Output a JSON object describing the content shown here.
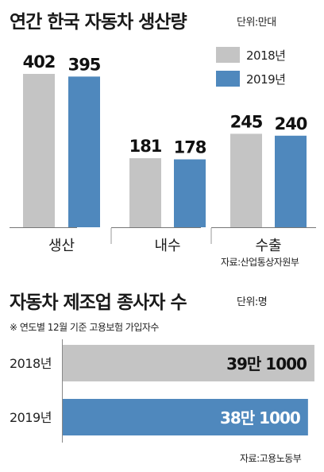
{
  "chart1": {
    "title": "연간 한국 자동차 생산량",
    "unit": "단위:만대",
    "source": "자료:산업통상자원부",
    "colors": {
      "2018년": "#c4c4c4",
      "2019년": "#4f88bd"
    }
  },
  "chart2": {
    "title": "자동차 제조업 종사자 수",
    "unit": "단위:명",
    "note": "※ 연도별 12월 기준 고용보험 가입자수",
    "source": "자료:고용노동부",
    "colors": {
      "2018년": "#c4c4c4",
      "2019년": "#4f88bd"
    }
  },
  "chart_data": [
    {
      "type": "bar",
      "title": "연간 한국 자동차 생산량",
      "categories": [
        "생산",
        "내수",
        "수출"
      ],
      "series": [
        {
          "name": "2018년",
          "values": [
            402,
            181,
            245
          ],
          "labels": [
            "402",
            "181",
            "245"
          ]
        },
        {
          "name": "2019년",
          "values": [
            395,
            178,
            240
          ],
          "labels": [
            "395",
            "178",
            "240"
          ]
        }
      ],
      "ylim": [
        0,
        420
      ],
      "legend": "top-right",
      "grid": false
    },
    {
      "type": "bar",
      "orientation": "horizontal",
      "title": "자동차 제조업 종사자 수",
      "categories": [
        "2018년",
        "2019년"
      ],
      "values": [
        391000,
        381000
      ],
      "labels": [
        "39만 1000",
        "38만 1000"
      ],
      "xlim": [
        0,
        396000
      ],
      "grid": false
    }
  ]
}
